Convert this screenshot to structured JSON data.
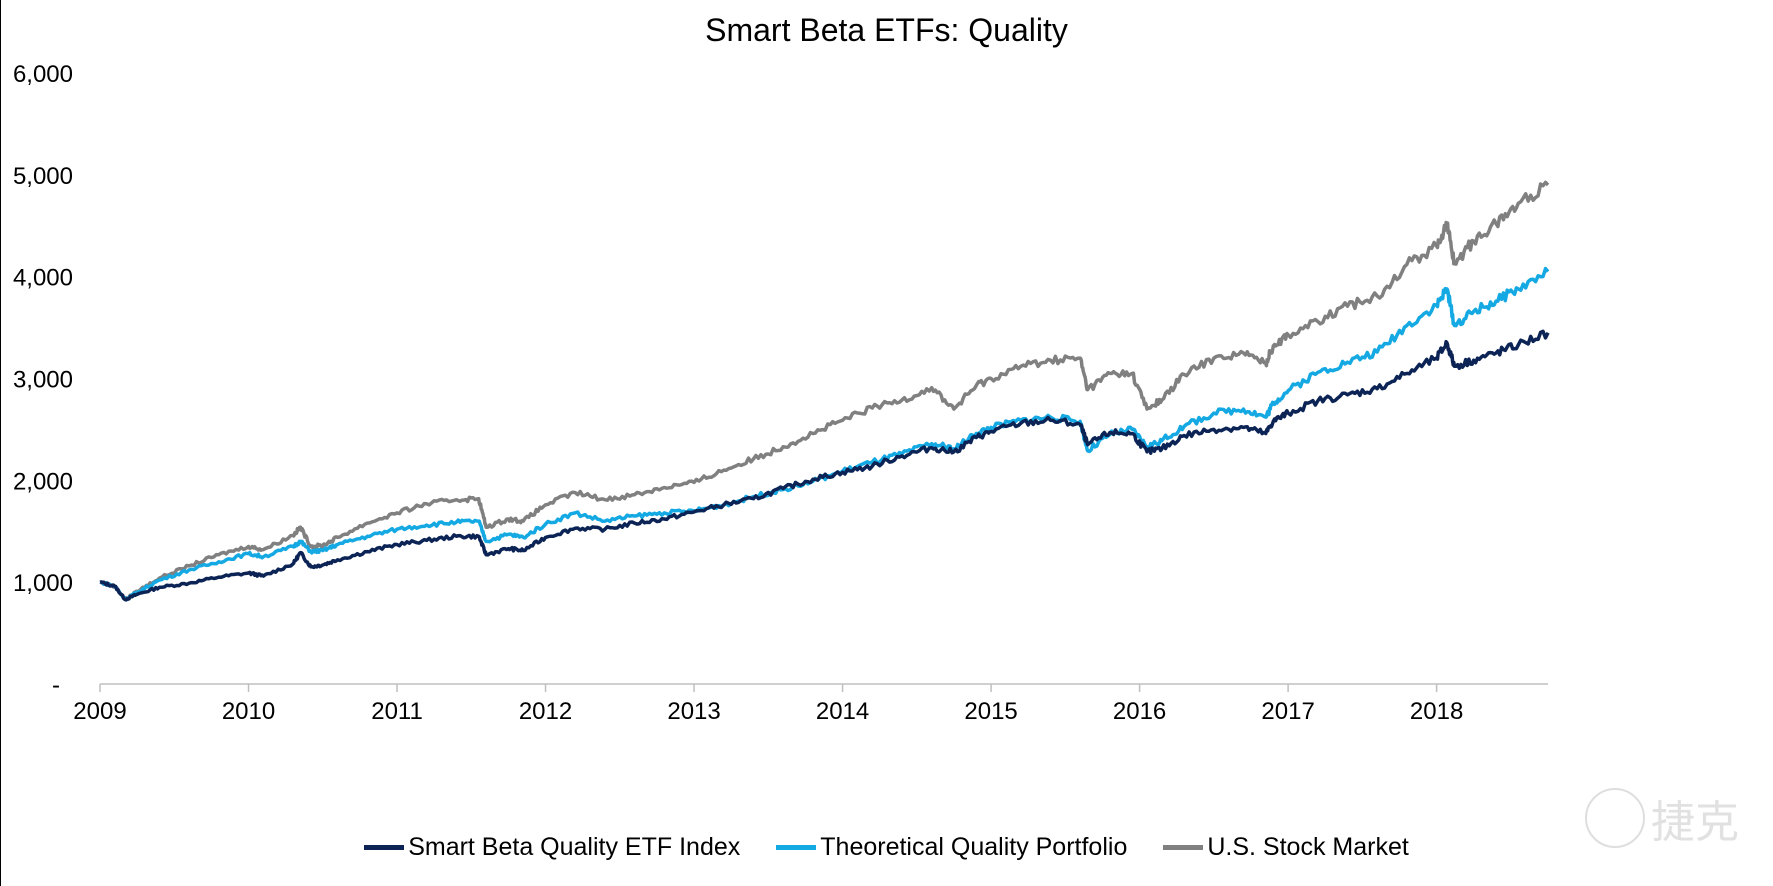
{
  "chart_data": {
    "type": "line",
    "title": "Smart Beta ETFs: Quality",
    "xlabel": "",
    "ylabel": "",
    "xlim": [
      2009.0,
      2018.75
    ],
    "ylim": [
      0,
      6000
    ],
    "y_ticks": [
      {
        "value": 0,
        "label": "-"
      },
      {
        "value": 1000,
        "label": "1,000"
      },
      {
        "value": 2000,
        "label": "2,000"
      },
      {
        "value": 3000,
        "label": "3,000"
      },
      {
        "value": 4000,
        "label": "4,000"
      },
      {
        "value": 5000,
        "label": "5,000"
      },
      {
        "value": 6000,
        "label": "6,000"
      }
    ],
    "x_ticks": [
      {
        "value": 2009,
        "label": "2009"
      },
      {
        "value": 2010,
        "label": "2010"
      },
      {
        "value": 2011,
        "label": "2011"
      },
      {
        "value": 2012,
        "label": "2012"
      },
      {
        "value": 2013,
        "label": "2013"
      },
      {
        "value": 2014,
        "label": "2014"
      },
      {
        "value": 2015,
        "label": "2015"
      },
      {
        "value": 2016,
        "label": "2016"
      },
      {
        "value": 2017,
        "label": "2017"
      },
      {
        "value": 2018,
        "label": "2018"
      }
    ],
    "grid": false,
    "legend_position": "bottom",
    "series": [
      {
        "name": "Smart Beta Quality ETF Index",
        "color": "#0c2455",
        "points": [
          [
            2009.0,
            1000
          ],
          [
            2009.1,
            960
          ],
          [
            2009.17,
            830
          ],
          [
            2009.25,
            880
          ],
          [
            2009.4,
            950
          ],
          [
            2009.6,
            990
          ],
          [
            2009.8,
            1050
          ],
          [
            2010.0,
            1090
          ],
          [
            2010.1,
            1060
          ],
          [
            2010.3,
            1180
          ],
          [
            2010.35,
            1290
          ],
          [
            2010.42,
            1150
          ],
          [
            2010.5,
            1170
          ],
          [
            2010.6,
            1220
          ],
          [
            2010.8,
            1300
          ],
          [
            2011.0,
            1370
          ],
          [
            2011.2,
            1410
          ],
          [
            2011.4,
            1450
          ],
          [
            2011.55,
            1450
          ],
          [
            2011.6,
            1270
          ],
          [
            2011.75,
            1330
          ],
          [
            2011.85,
            1310
          ],
          [
            2012.0,
            1440
          ],
          [
            2012.2,
            1530
          ],
          [
            2012.4,
            1520
          ],
          [
            2012.6,
            1580
          ],
          [
            2012.8,
            1620
          ],
          [
            2013.0,
            1690
          ],
          [
            2013.2,
            1760
          ],
          [
            2013.4,
            1820
          ],
          [
            2013.6,
            1920
          ],
          [
            2013.8,
            2010
          ],
          [
            2014.0,
            2080
          ],
          [
            2014.2,
            2140
          ],
          [
            2014.4,
            2240
          ],
          [
            2014.6,
            2320
          ],
          [
            2014.75,
            2280
          ],
          [
            2014.9,
            2420
          ],
          [
            2015.0,
            2480
          ],
          [
            2015.2,
            2560
          ],
          [
            2015.4,
            2590
          ],
          [
            2015.6,
            2550
          ],
          [
            2015.65,
            2350
          ],
          [
            2015.8,
            2470
          ],
          [
            2015.95,
            2460
          ],
          [
            2016.05,
            2280
          ],
          [
            2016.15,
            2310
          ],
          [
            2016.3,
            2440
          ],
          [
            2016.5,
            2500
          ],
          [
            2016.7,
            2520
          ],
          [
            2016.85,
            2460
          ],
          [
            2016.9,
            2580
          ],
          [
            2017.0,
            2660
          ],
          [
            2017.2,
            2780
          ],
          [
            2017.4,
            2840
          ],
          [
            2017.6,
            2900
          ],
          [
            2017.8,
            3050
          ],
          [
            2018.0,
            3200
          ],
          [
            2018.07,
            3350
          ],
          [
            2018.12,
            3120
          ],
          [
            2018.25,
            3180
          ],
          [
            2018.4,
            3250
          ],
          [
            2018.55,
            3330
          ],
          [
            2018.75,
            3450
          ]
        ]
      },
      {
        "name": "Theoretical Quality Portfolio",
        "color": "#14a9e3",
        "points": [
          [
            2009.0,
            1000
          ],
          [
            2009.1,
            960
          ],
          [
            2009.17,
            830
          ],
          [
            2009.25,
            900
          ],
          [
            2009.4,
            1020
          ],
          [
            2009.6,
            1120
          ],
          [
            2009.8,
            1200
          ],
          [
            2010.0,
            1280
          ],
          [
            2010.1,
            1250
          ],
          [
            2010.3,
            1350
          ],
          [
            2010.35,
            1400
          ],
          [
            2010.42,
            1300
          ],
          [
            2010.5,
            1310
          ],
          [
            2010.6,
            1370
          ],
          [
            2010.8,
            1450
          ],
          [
            2011.0,
            1520
          ],
          [
            2011.2,
            1560
          ],
          [
            2011.4,
            1590
          ],
          [
            2011.55,
            1600
          ],
          [
            2011.6,
            1400
          ],
          [
            2011.75,
            1470
          ],
          [
            2011.85,
            1440
          ],
          [
            2012.0,
            1570
          ],
          [
            2012.2,
            1680
          ],
          [
            2012.4,
            1600
          ],
          [
            2012.6,
            1650
          ],
          [
            2012.8,
            1680
          ],
          [
            2013.0,
            1700
          ],
          [
            2013.2,
            1760
          ],
          [
            2013.4,
            1840
          ],
          [
            2013.6,
            1910
          ],
          [
            2013.8,
            1990
          ],
          [
            2014.0,
            2090
          ],
          [
            2014.2,
            2180
          ],
          [
            2014.4,
            2260
          ],
          [
            2014.6,
            2360
          ],
          [
            2014.75,
            2310
          ],
          [
            2014.9,
            2460
          ],
          [
            2015.0,
            2520
          ],
          [
            2015.2,
            2590
          ],
          [
            2015.4,
            2620
          ],
          [
            2015.6,
            2580
          ],
          [
            2015.65,
            2290
          ],
          [
            2015.8,
            2450
          ],
          [
            2015.95,
            2500
          ],
          [
            2016.05,
            2330
          ],
          [
            2016.15,
            2390
          ],
          [
            2016.3,
            2530
          ],
          [
            2016.5,
            2660
          ],
          [
            2016.7,
            2700
          ],
          [
            2016.85,
            2620
          ],
          [
            2016.9,
            2760
          ],
          [
            2017.0,
            2880
          ],
          [
            2017.2,
            3060
          ],
          [
            2017.4,
            3160
          ],
          [
            2017.6,
            3260
          ],
          [
            2017.8,
            3520
          ],
          [
            2018.0,
            3720
          ],
          [
            2018.07,
            3880
          ],
          [
            2018.12,
            3520
          ],
          [
            2018.25,
            3660
          ],
          [
            2018.4,
            3760
          ],
          [
            2018.55,
            3880
          ],
          [
            2018.75,
            4050
          ]
        ]
      },
      {
        "name": "U.S. Stock Market",
        "color": "#808080",
        "points": [
          [
            2009.0,
            1000
          ],
          [
            2009.1,
            960
          ],
          [
            2009.17,
            830
          ],
          [
            2009.25,
            910
          ],
          [
            2009.4,
            1040
          ],
          [
            2009.6,
            1160
          ],
          [
            2009.8,
            1270
          ],
          [
            2010.0,
            1350
          ],
          [
            2010.1,
            1320
          ],
          [
            2010.3,
            1460
          ],
          [
            2010.35,
            1540
          ],
          [
            2010.42,
            1350
          ],
          [
            2010.5,
            1360
          ],
          [
            2010.6,
            1440
          ],
          [
            2010.8,
            1580
          ],
          [
            2011.0,
            1680
          ],
          [
            2011.2,
            1770
          ],
          [
            2011.4,
            1810
          ],
          [
            2011.55,
            1820
          ],
          [
            2011.6,
            1540
          ],
          [
            2011.75,
            1620
          ],
          [
            2011.85,
            1600
          ],
          [
            2012.0,
            1760
          ],
          [
            2012.2,
            1880
          ],
          [
            2012.4,
            1810
          ],
          [
            2012.6,
            1860
          ],
          [
            2012.8,
            1930
          ],
          [
            2013.0,
            1980
          ],
          [
            2013.2,
            2100
          ],
          [
            2013.4,
            2210
          ],
          [
            2013.6,
            2330
          ],
          [
            2013.8,
            2460
          ],
          [
            2014.0,
            2590
          ],
          [
            2014.2,
            2710
          ],
          [
            2014.4,
            2790
          ],
          [
            2014.6,
            2910
          ],
          [
            2014.75,
            2700
          ],
          [
            2014.9,
            2930
          ],
          [
            2015.0,
            3000
          ],
          [
            2015.2,
            3120
          ],
          [
            2015.4,
            3180
          ],
          [
            2015.6,
            3200
          ],
          [
            2015.65,
            2890
          ],
          [
            2015.8,
            3050
          ],
          [
            2015.95,
            3050
          ],
          [
            2016.05,
            2700
          ],
          [
            2016.15,
            2790
          ],
          [
            2016.3,
            3040
          ],
          [
            2016.5,
            3200
          ],
          [
            2016.7,
            3250
          ],
          [
            2016.85,
            3150
          ],
          [
            2016.9,
            3320
          ],
          [
            2017.0,
            3430
          ],
          [
            2017.2,
            3560
          ],
          [
            2017.4,
            3710
          ],
          [
            2017.6,
            3810
          ],
          [
            2017.8,
            4120
          ],
          [
            2018.0,
            4300
          ],
          [
            2018.07,
            4520
          ],
          [
            2018.12,
            4130
          ],
          [
            2018.25,
            4350
          ],
          [
            2018.4,
            4520
          ],
          [
            2018.55,
            4720
          ],
          [
            2018.75,
            4900
          ]
        ]
      }
    ]
  },
  "watermark": {
    "text": "捷克"
  }
}
